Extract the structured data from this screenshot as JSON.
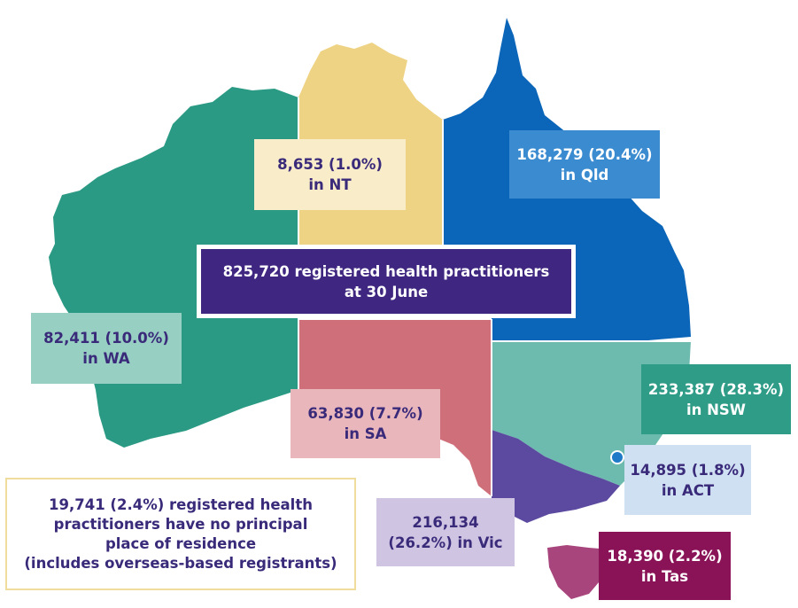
{
  "total": {
    "line1": "825,720 registered health practitioners",
    "line2": "at 30 June"
  },
  "regions": {
    "nt": {
      "line1": "8,653 (1.0%)",
      "line2": "in NT",
      "color": "#efd385"
    },
    "qld": {
      "line1": "168,279 (20.4%)",
      "line2": "in Qld",
      "color": "#0b65b8"
    },
    "wa": {
      "line1": "82,411 (10.0%)",
      "line2": "in WA",
      "color": "#2a9a84"
    },
    "sa": {
      "line1": "63,830 (7.7%)",
      "line2": "in SA",
      "color": "#cf6f79"
    },
    "nsw": {
      "line1": "233,387 (28.3%)",
      "line2": "in NSW",
      "color": "#6dbaae"
    },
    "act": {
      "line1": "14,895 (1.8%)",
      "line2": "in ACT",
      "color": "#1f7bc7"
    },
    "vic": {
      "line1": "216,134",
      "line2": "(26.2%) in Vic",
      "color": "#5b4aa0"
    },
    "tas": {
      "line1": "18,390 (2.2%)",
      "line2": "in Tas",
      "color": "#a8457d"
    }
  },
  "no_principal": {
    "line1": "19,741 (2.4%) registered health",
    "line2": "practitioners have no principal",
    "line3": "place of residence",
    "line4": "(includes overseas-based registrants)"
  }
}
